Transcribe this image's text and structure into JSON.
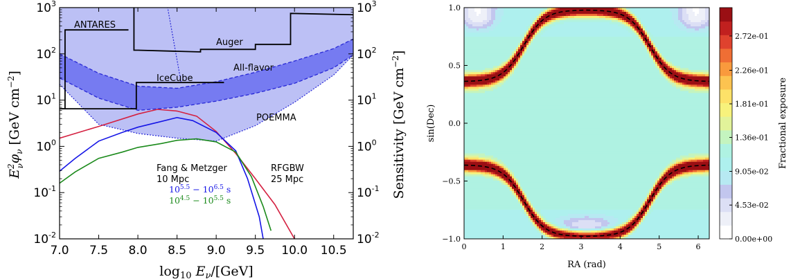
{
  "chart_data": [
    {
      "type": "line",
      "xlabel": "log₁₀ Eν/[GeV]",
      "ylabel": "Eν²φν [GeV cm⁻²]",
      "ylabel_right": "Sensitivity [GeV cm⁻²]",
      "xlim": [
        7.0,
        10.75
      ],
      "ylim": [
        0.01,
        1000
      ],
      "yscale": "log",
      "xticks": [
        "7.0",
        "7.5",
        "8.0",
        "8.5",
        "9.0",
        "9.5",
        "10.0",
        "10.5"
      ],
      "yticks": [
        {
          "base": "10",
          "exp": "-2"
        },
        {
          "base": "10",
          "exp": "-1"
        },
        {
          "base": "10",
          "exp": "0"
        },
        {
          "base": "10",
          "exp": "1"
        },
        {
          "base": "10",
          "exp": "2"
        },
        {
          "base": "10",
          "exp": "3"
        }
      ],
      "annotations": {
        "antares": "ANTARES",
        "auger": "Auger",
        "icecube": "IceCube",
        "allflavor": "All-flavor",
        "poemma": "POEMMA",
        "fang1": "Fang & Metzger",
        "fang2": "10 Mpc",
        "t1": "10^5.5 − 10^6.5 s",
        "t2": "10^4.5 − 10^5.5 s",
        "rfg1": "RFGBW",
        "rfg2": "25 Mpc"
      },
      "colors": {
        "band": "#bcc0f5",
        "band_dark": "#6a6ff0",
        "band_edge": "#2727d6",
        "red": "#d42040",
        "blue": "#1515e6",
        "green": "#1b8a1b",
        "black": "#000000"
      },
      "series": [
        {
          "name": "ANTARES",
          "x": [
            7.02,
            7.07,
            7.07,
            7.88
          ],
          "y": [
            6.5,
            6.5,
            330,
            330
          ]
        },
        {
          "name": "IceCube",
          "x": [
            7.0,
            7.98,
            7.98,
            9.1
          ],
          "y": [
            6.5,
            6.5,
            24,
            24
          ]
        },
        {
          "name": "Auger",
          "x": [
            7.95,
            7.95,
            8.0,
            8.8,
            8.8,
            9.5,
            9.5,
            9.95,
            9.95,
            10.75
          ],
          "y": [
            1000,
            120,
            120,
            110,
            125,
            125,
            160,
            160,
            750,
            700
          ]
        },
        {
          "x": [
            7.0,
            7.5,
            8.0,
            8.25,
            8.5,
            8.75,
            9.0,
            9.25,
            9.5,
            9.75,
            10.0
          ],
          "y": [
            1.5,
            2.7,
            5.0,
            6.3,
            5.8,
            4.5,
            2.1,
            0.7,
            0.2,
            0.055,
            0.01
          ]
        },
        {
          "x": [
            7.0,
            7.2,
            7.5,
            7.8,
            8.0,
            8.25,
            8.5,
            8.7,
            9.0,
            9.25,
            9.4,
            9.55,
            9.6
          ],
          "y": [
            0.29,
            0.55,
            1.3,
            2.0,
            2.6,
            3.3,
            4.2,
            3.6,
            2.0,
            0.8,
            0.2,
            0.03,
            0.01
          ]
        },
        {
          "x": [
            7.0,
            7.2,
            7.5,
            7.8,
            8.0,
            8.3,
            8.5,
            8.75,
            9.0,
            9.25,
            9.45,
            9.6,
            9.7
          ],
          "y": [
            0.16,
            0.28,
            0.55,
            0.75,
            0.95,
            1.15,
            1.35,
            1.45,
            1.25,
            0.75,
            0.22,
            0.05,
            0.015
          ]
        },
        {
          "name": "All-flavor",
          "x": [
            7.0,
            7.5,
            8.0,
            8.5,
            9.0,
            9.5,
            10.0,
            10.5,
            10.75
          ],
          "y_low": [
            30,
            11,
            6.0,
            7.0,
            9.5,
            14,
            23,
            50,
            95
          ],
          "y_high": [
            100,
            38,
            20,
            18,
            25,
            40,
            70,
            130,
            210
          ]
        },
        {
          "name": "POEMMA",
          "x": [
            7.0,
            7.5,
            8.0,
            8.5,
            9.0,
            9.5,
            10.0,
            10.5,
            10.75
          ],
          "y_low": [
            22,
            3.0,
            1.9,
            1.5,
            1.3,
            2.8,
            9.0,
            35,
            95
          ]
        }
      ]
    },
    {
      "type": "heatmap",
      "xlabel": "RA (rad)",
      "ylabel": "sin(Dec)",
      "colorbar_label": "Fractional exposure",
      "xlim": [
        0,
        6.2832
      ],
      "ylim": [
        -1.0,
        1.0
      ],
      "xticks": [
        "0",
        "1",
        "2",
        "3",
        "4",
        "5",
        "6"
      ],
      "yticks": [
        "−1.0",
        "−0.5",
        "0.0",
        "0.5",
        "1.0"
      ],
      "colorbar_ticks": [
        "2.72e-01",
        "2.26e-01",
        "1.81e-01",
        "1.36e-01",
        "9.05e-02",
        "4.53e-02",
        "0.00e+00"
      ],
      "colorbar_max": 0.31,
      "colors": [
        "#ffffff",
        "#eef0f8",
        "#dcdff5",
        "#c2c6ee",
        "#b7e9f2",
        "#aef0ee",
        "#aff2e2",
        "#c4f4bf",
        "#e2f39a",
        "#f7f27c",
        "#fde168",
        "#fcc350",
        "#f99a3d",
        "#ef6e34",
        "#df422e",
        "#c1201f",
        "#9a0f14"
      ]
    }
  ]
}
